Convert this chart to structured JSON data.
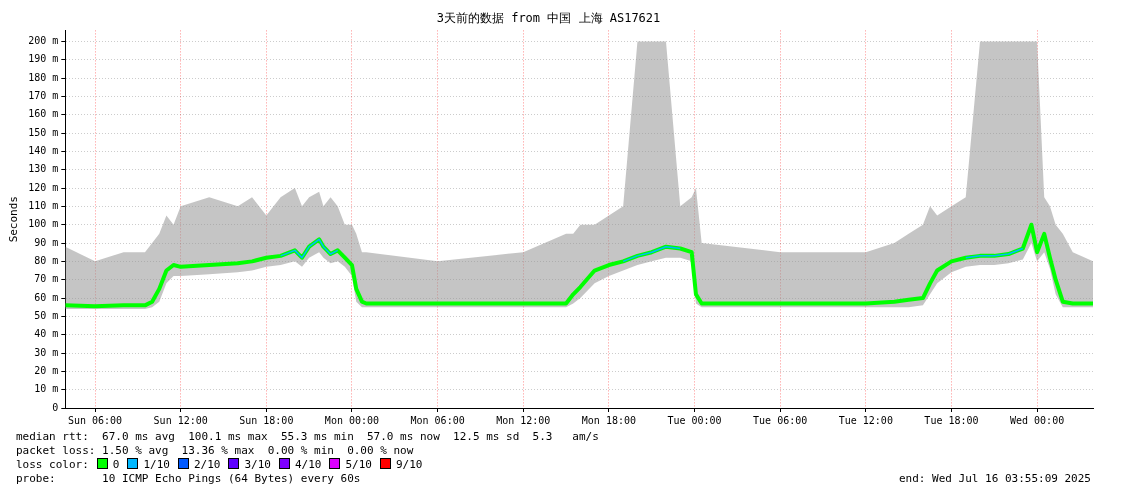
{
  "chart_data": {
    "type": "line",
    "title": "3天前的数据 from 中国 上海 AS17621",
    "ylabel": "Seconds",
    "x": [
      "2025-07-13T03:55",
      "2025-07-13T06:00",
      "2025-07-13T08:00",
      "2025-07-13T09:30",
      "2025-07-13T10:00",
      "2025-07-13T10:30",
      "2025-07-13T11:00",
      "2025-07-13T11:30",
      "2025-07-13T12:00",
      "2025-07-13T14:00",
      "2025-07-13T16:00",
      "2025-07-13T17:00",
      "2025-07-13T18:00",
      "2025-07-13T19:00",
      "2025-07-13T20:00",
      "2025-07-13T20:30",
      "2025-07-13T21:00",
      "2025-07-13T21:42",
      "2025-07-13T22:00",
      "2025-07-13T22:30",
      "2025-07-13T23:00",
      "2025-07-13T23:30",
      "2025-07-14T00:00",
      "2025-07-14T00:18",
      "2025-07-14T00:42",
      "2025-07-14T01:00",
      "2025-07-14T06:00",
      "2025-07-14T12:00",
      "2025-07-14T15:00",
      "2025-07-14T15:30",
      "2025-07-14T16:00",
      "2025-07-14T17:00",
      "2025-07-14T18:00",
      "2025-07-14T19:00",
      "2025-07-14T20:00",
      "2025-07-14T21:00",
      "2025-07-14T22:00",
      "2025-07-14T23:00",
      "2025-07-14T23:48",
      "2025-07-15T00:06",
      "2025-07-15T00:30",
      "2025-07-15T06:00",
      "2025-07-15T12:00",
      "2025-07-15T14:00",
      "2025-07-15T15:00",
      "2025-07-15T16:00",
      "2025-07-15T16:30",
      "2025-07-15T17:00",
      "2025-07-15T18:00",
      "2025-07-15T19:00",
      "2025-07-15T20:00",
      "2025-07-15T21:00",
      "2025-07-15T22:00",
      "2025-07-15T23:00",
      "2025-07-15T23:36",
      "2025-07-16T00:00",
      "2025-07-16T00:30",
      "2025-07-16T00:54",
      "2025-07-16T01:18",
      "2025-07-16T01:48",
      "2025-07-16T02:30",
      "2025-07-16T03:55"
    ],
    "series": [
      {
        "name": "0",
        "color": "#00ff00",
        "values": [
          56,
          55.5,
          56,
          56,
          58,
          65,
          75,
          78,
          77,
          78,
          79,
          80,
          82,
          83,
          86,
          82,
          88,
          92,
          88,
          84,
          86,
          82,
          78,
          65,
          58,
          57,
          57,
          57,
          57,
          62,
          66,
          75,
          78,
          80,
          83,
          85,
          88,
          87,
          85,
          62,
          57,
          57,
          57,
          58,
          59,
          60,
          68,
          75,
          80,
          82,
          83,
          83,
          84,
          87,
          100,
          85,
          95,
          82,
          70,
          58,
          57,
          57
        ],
        "lower": [
          54,
          54,
          54,
          54,
          55,
          58,
          68,
          72,
          72,
          73,
          74,
          75,
          77,
          78,
          80,
          77,
          82,
          85,
          82,
          79,
          80,
          77,
          72,
          58,
          55,
          55,
          55,
          55,
          55,
          57,
          60,
          68,
          72,
          75,
          78,
          80,
          82,
          82,
          80,
          57,
          55,
          55,
          55,
          55,
          55,
          56,
          62,
          68,
          74,
          77,
          78,
          78,
          79,
          81,
          90,
          80,
          85,
          76,
          62,
          55,
          55,
          55
        ],
        "upper": [
          88,
          80,
          85,
          85,
          90,
          95,
          105,
          100,
          110,
          115,
          110,
          115,
          105,
          115,
          120,
          110,
          115,
          118,
          110,
          115,
          110,
          100,
          100,
          95,
          85,
          85,
          80,
          85,
          95,
          95,
          100,
          100,
          105,
          110,
          200,
          200,
          200,
          110,
          115,
          120,
          90,
          85,
          85,
          90,
          95,
          100,
          110,
          105,
          110,
          115,
          200,
          200,
          200,
          200,
          200,
          200,
          115,
          110,
          100,
          95,
          85,
          80
        ]
      },
      {
        "name": "1/10",
        "color": "#00b8ff",
        "values": [
          null,
          null,
          null,
          null,
          null,
          null,
          null,
          null,
          null,
          null,
          null,
          null,
          null,
          83,
          86,
          82,
          88,
          92,
          88,
          84,
          86,
          null,
          null,
          null,
          null,
          null,
          null,
          null,
          null,
          null,
          null,
          null,
          null,
          80,
          83,
          85,
          88,
          87,
          null,
          null,
          null,
          null,
          null,
          null,
          null,
          null,
          null,
          null,
          null,
          82,
          83,
          83,
          84,
          87,
          null,
          null,
          null,
          null,
          null,
          null,
          null,
          null
        ]
      },
      {
        "name": "2/10",
        "color": "#0059ff",
        "values": [
          null,
          null,
          null,
          null,
          null,
          null,
          null,
          null,
          null,
          null,
          null,
          null,
          null,
          null,
          null,
          null,
          null,
          null,
          null,
          null,
          null,
          null,
          null,
          null,
          null,
          null,
          null,
          null,
          null,
          null,
          null,
          null,
          null,
          null,
          null,
          null,
          null,
          null,
          null,
          null,
          null,
          null,
          null,
          null,
          null,
          null,
          null,
          null,
          null,
          null,
          null,
          null,
          null,
          null,
          null,
          null,
          null,
          null,
          null,
          null,
          null,
          null
        ]
      },
      {
        "name": "3/10",
        "color": "#5e00ff",
        "values": [
          null,
          null,
          null,
          null,
          null,
          null,
          null,
          null,
          null,
          null,
          null,
          null,
          null,
          null,
          null,
          null,
          null,
          null,
          null,
          null,
          null,
          null,
          null,
          null,
          null,
          null,
          null,
          null,
          null,
          null,
          null,
          null,
          null,
          null,
          null,
          null,
          null,
          null,
          null,
          null,
          null,
          null,
          null,
          null,
          null,
          null,
          null,
          null,
          null,
          null,
          null,
          null,
          null,
          null,
          null,
          null,
          null,
          null,
          null,
          null,
          null,
          null
        ]
      },
      {
        "name": "4/10",
        "color": "#7e00ff",
        "values": [
          null,
          null,
          null,
          null,
          null,
          null,
          null,
          null,
          null,
          null,
          null,
          null,
          null,
          null,
          null,
          null,
          null,
          null,
          null,
          null,
          null,
          null,
          null,
          null,
          null,
          null,
          null,
          null,
          null,
          null,
          null,
          null,
          null,
          null,
          null,
          null,
          null,
          null,
          null,
          null,
          null,
          null,
          null,
          null,
          null,
          null,
          null,
          null,
          null,
          null,
          null,
          null,
          null,
          null,
          null,
          null,
          null,
          null,
          null,
          null,
          null,
          null
        ]
      },
      {
        "name": "5/10",
        "color": "#dd00ff",
        "values": [
          null,
          null,
          null,
          null,
          null,
          null,
          null,
          null,
          null,
          null,
          null,
          null,
          null,
          null,
          null,
          null,
          null,
          null,
          null,
          null,
          null,
          null,
          null,
          null,
          null,
          null,
          null,
          null,
          null,
          null,
          null,
          null,
          null,
          null,
          null,
          null,
          null,
          null,
          null,
          null,
          null,
          null,
          null,
          null,
          null,
          null,
          null,
          null,
          null,
          null,
          null,
          null,
          null,
          null,
          null,
          null,
          null,
          null,
          null,
          null,
          null,
          null
        ]
      },
      {
        "name": "9/10",
        "color": "#ff0000",
        "values": [
          null,
          null,
          null,
          null,
          null,
          null,
          null,
          null,
          null,
          null,
          null,
          null,
          null,
          null,
          null,
          null,
          null,
          null,
          null,
          null,
          null,
          null,
          null,
          null,
          null,
          null,
          null,
          null,
          null,
          null,
          null,
          null,
          null,
          null,
          null,
          null,
          null,
          null,
          null,
          null,
          null,
          null,
          null,
          null,
          null,
          null,
          null,
          null,
          null,
          null,
          null,
          null,
          null,
          null,
          null,
          null,
          null,
          null,
          null,
          null,
          null,
          null
        ]
      }
    ],
    "xlim": [
      "2025-07-13T03:55",
      "2025-07-16T03:55"
    ],
    "xticks": [
      {
        "value": "2025-07-13T06:00",
        "label": "Sun 06:00"
      },
      {
        "value": "2025-07-13T12:00",
        "label": "Sun 12:00"
      },
      {
        "value": "2025-07-13T18:00",
        "label": "Sun 18:00"
      },
      {
        "value": "2025-07-14T00:00",
        "label": "Mon 00:00"
      },
      {
        "value": "2025-07-14T06:00",
        "label": "Mon 06:00"
      },
      {
        "value": "2025-07-14T12:00",
        "label": "Mon 12:00"
      },
      {
        "value": "2025-07-14T18:00",
        "label": "Mon 18:00"
      },
      {
        "value": "2025-07-15T00:00",
        "label": "Tue 00:00"
      },
      {
        "value": "2025-07-15T06:00",
        "label": "Tue 06:00"
      },
      {
        "value": "2025-07-15T12:00",
        "label": "Tue 12:00"
      },
      {
        "value": "2025-07-15T18:00",
        "label": "Tue 18:00"
      },
      {
        "value": "2025-07-16T00:00",
        "label": "Wed 00:00"
      }
    ],
    "ylim": [
      0,
      206
    ],
    "yticks": [
      0,
      {
        "value": 10,
        "label": "10 m"
      },
      {
        "value": 20,
        "label": "20 m"
      },
      {
        "value": 30,
        "label": "30 m"
      },
      {
        "value": 40,
        "label": "40 m"
      },
      {
        "value": 50,
        "label": "50 m"
      },
      {
        "value": 60,
        "label": "60 m"
      },
      {
        "value": 70,
        "label": "70 m"
      },
      {
        "value": 80,
        "label": "80 m"
      },
      {
        "value": 90,
        "label": "90 m"
      },
      {
        "value": 100,
        "label": "100 m"
      },
      {
        "value": 110,
        "label": "110 m"
      },
      {
        "value": 120,
        "label": "120 m"
      },
      {
        "value": 130,
        "label": "130 m"
      },
      {
        "value": 140,
        "label": "140 m"
      },
      {
        "value": 150,
        "label": "150 m"
      },
      {
        "value": 160,
        "label": "160 m"
      },
      {
        "value": 170,
        "label": "170 m"
      },
      {
        "value": 180,
        "label": "180 m"
      },
      {
        "value": 190,
        "label": "190 m"
      },
      {
        "value": 200,
        "label": "200 m"
      }
    ],
    "grid": true,
    "legend": "bottom",
    "annotations": [
      "median rtt:  67.0 ms avg  100.1 ms max  55.3 ms min  57.0 ms now  12.5 ms sd  5.3   am/s",
      "packet loss: 1.50 % avg  13.36 % max  0.00 % min  0.00 % now",
      "loss color:",
      "probe:       10 ICMP Echo Pings (64 Bytes) every 60s",
      "end: Wed Jul 16 03:55:09 2025"
    ]
  }
}
